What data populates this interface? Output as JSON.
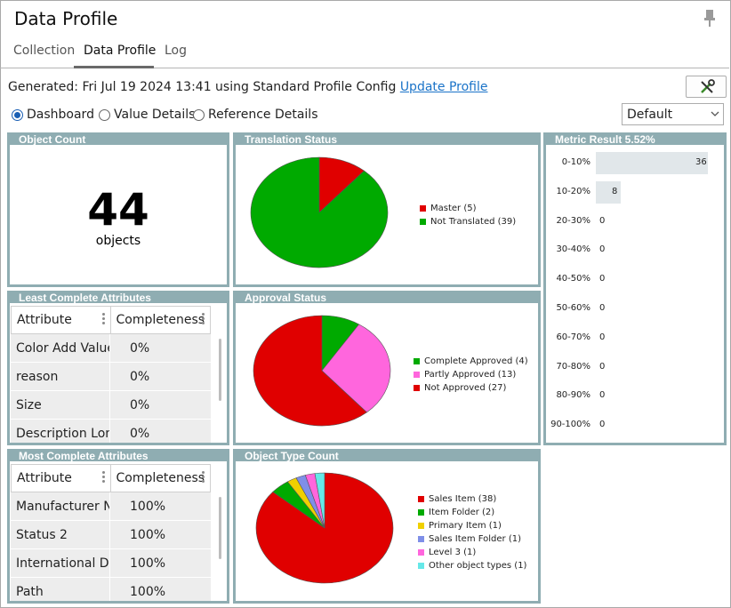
{
  "window": {
    "title": "Data Profile"
  },
  "tabs": [
    {
      "label": "Collection"
    },
    {
      "label": "Data Profile"
    },
    {
      "label": "Log"
    }
  ],
  "generated": {
    "text": "Generated: Fri Jul 19 2024 13:41 using Standard Profile Config",
    "link_label": "Update Profile"
  },
  "views": [
    {
      "label": "Dashboard",
      "selected": true
    },
    {
      "label": "Value Details",
      "selected": false
    },
    {
      "label": "Reference Details",
      "selected": false
    }
  ],
  "config_select": {
    "value": "Default"
  },
  "object_count": {
    "title": "Object Count",
    "value": "44",
    "unit": "objects"
  },
  "translation_status": {
    "title": "Translation Status",
    "slices": [
      {
        "label": "Master (5)",
        "value": 5,
        "color": "#e00000"
      },
      {
        "label": "Not Translated (39)",
        "value": 39,
        "color": "#00aa00"
      }
    ]
  },
  "approval_status": {
    "title": "Approval Status",
    "slices": [
      {
        "label": "Complete Approved (4)",
        "value": 4,
        "color": "#00aa00"
      },
      {
        "label": "Partly Approved (13)",
        "value": 13,
        "color": "#ff66dd"
      },
      {
        "label": "Not Approved (27)",
        "value": 27,
        "color": "#e00000"
      }
    ]
  },
  "object_type_count": {
    "title": "Object Type Count",
    "slices": [
      {
        "label": "Sales Item (38)",
        "value": 38,
        "color": "#e00000"
      },
      {
        "label": "Item Folder (2)",
        "value": 2,
        "color": "#00aa00"
      },
      {
        "label": "Primary Item (1)",
        "value": 1,
        "color": "#f0d000"
      },
      {
        "label": "Sales Item Folder (1)",
        "value": 1,
        "color": "#7f8fe8"
      },
      {
        "label": "Level 3 (1)",
        "value": 1,
        "color": "#ff66dd"
      },
      {
        "label": "Other object types (1)",
        "value": 1,
        "color": "#66e8e8"
      }
    ]
  },
  "metric_result": {
    "title": "Metric Result 5.52%",
    "rows": [
      {
        "label": "0-10%",
        "value": 36
      },
      {
        "label": "10-20%",
        "value": 8
      },
      {
        "label": "20-30%",
        "value": 0
      },
      {
        "label": "30-40%",
        "value": 0
      },
      {
        "label": "40-50%",
        "value": 0
      },
      {
        "label": "50-60%",
        "value": 0
      },
      {
        "label": "60-70%",
        "value": 0
      },
      {
        "label": "70-80%",
        "value": 0
      },
      {
        "label": "80-90%",
        "value": 0
      },
      {
        "label": "90-100%",
        "value": 0
      }
    ]
  },
  "least_complete": {
    "title": "Least Complete Attributes",
    "columns": [
      "Attribute",
      "Completeness"
    ],
    "rows": [
      [
        "Color Add Values",
        "0%"
      ],
      [
        "reason",
        "0%"
      ],
      [
        "Size",
        "0%"
      ],
      [
        "Description Long",
        "0%"
      ]
    ]
  },
  "most_complete": {
    "title": "Most Complete Attributes",
    "columns": [
      "Attribute",
      "Completeness"
    ],
    "rows": [
      [
        "Manufacturer N...",
        "100%"
      ],
      [
        "Status 2",
        "100%"
      ],
      [
        "International Di...",
        "100%"
      ],
      [
        "Path",
        "100%"
      ]
    ]
  },
  "colors": {
    "panel_header": "#8fadb2",
    "link": "#1a73c8",
    "bar": "#e1e7ea"
  }
}
